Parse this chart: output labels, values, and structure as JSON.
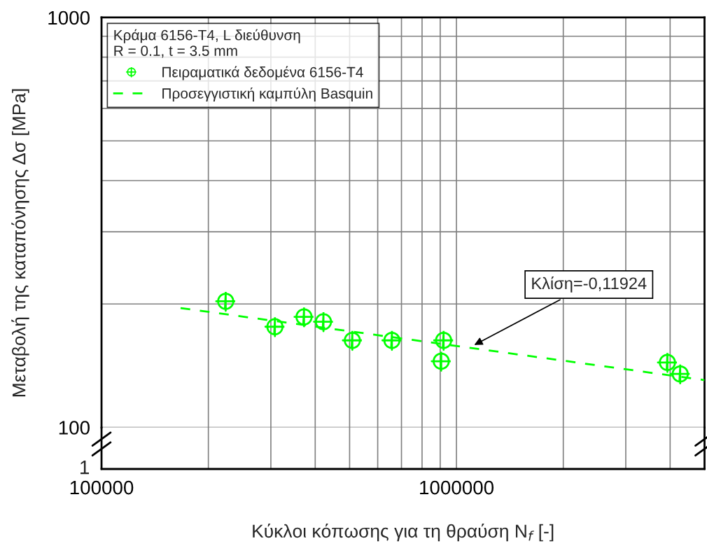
{
  "chart_data": {
    "type": "scatter",
    "xlabel": "Κύκλοι κόπωσης για τη θραύση N$_{f}$ [-]",
    "ylabel": "Μεταβολή της καταπόνησης Δσ [MPa]",
    "legend_title": "Κράμα 6156-T4, L διεύθυνση\nR = 0.1, t = 3.5 mm",
    "series": [
      {
        "name": "Πειραματικά δεδομένα 6156-T4",
        "type": "scatter",
        "color": "#00ff00",
        "marker": "cross",
        "x": [
          223800,
          308000,
          372000,
          422000,
          509000,
          658000,
          920000,
          906000,
          3930000,
          4270000
        ],
        "values": [
          203,
          176,
          186,
          181,
          163,
          163,
          163,
          145,
          144,
          135
        ]
      },
      {
        "name": "Προσεγγιστική καμπύλη Basquin",
        "type": "line",
        "color": "#00ff00",
        "line_style": "dashed",
        "marker": "none",
        "x": [
          167000,
          5000000
        ],
        "values": [
          195.5,
          130.4
        ]
      }
    ],
    "annotations": [
      {
        "text": "Κλίση=-0,11924",
        "x": 1110000,
        "y": 158
      },
      "1"
    ],
    "log": "xy",
    "xlim": [
      100000,
      5000000
    ],
    "xticks": [
      100000,
      {
        "value": 200000,
        "label": null
      },
      {
        "value": 300000,
        "label": null
      },
      {
        "value": 400000,
        "label": null
      },
      {
        "value": 500000,
        "label": null
      },
      {
        "value": 600000,
        "label": null
      },
      {
        "value": 700000,
        "label": null
      },
      {
        "value": 800000,
        "label": null
      },
      {
        "value": 900000,
        "label": null
      },
      1000000,
      {
        "value": 2000000,
        "label": null
      },
      {
        "value": 3000000,
        "label": null
      },
      {
        "value": 4000000,
        "label": null
      },
      {
        "value": 5000000,
        "label": null
      }
    ],
    "ylim": [
      100,
      1000
    ],
    "yticks": [
      100,
      {
        "value": 200,
        "label": null
      },
      {
        "value": 300,
        "label": null
      },
      {
        "value": 400,
        "label": null
      },
      {
        "value": 500,
        "label": null
      },
      {
        "value": 600,
        "label": null
      },
      {
        "value": 700,
        "label": null
      },
      {
        "value": 800,
        "label": null
      },
      {
        "value": 900,
        "label": null
      },
      1000
    ],
    "grid": true,
    "legend": "top left"
  }
}
